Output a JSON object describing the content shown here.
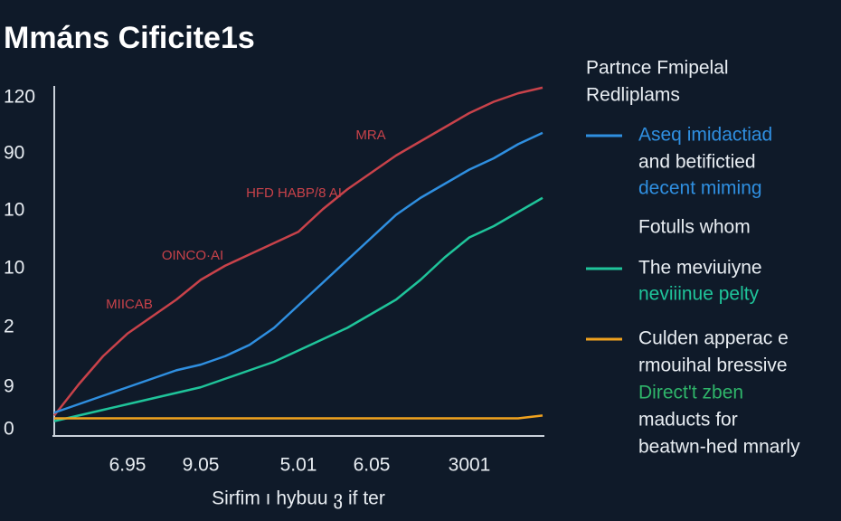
{
  "chart_data": {
    "type": "line",
    "title": "Mmáns Cificite1s",
    "x_label": "Sirfim ı hybuu ვ if ter",
    "categories": [
      null,
      null,
      null,
      "6.95",
      null,
      null,
      "9.05",
      null,
      null,
      null,
      "5.01",
      null,
      null,
      "6.05",
      null,
      null,
      null,
      "3001",
      null,
      null,
      null
    ],
    "y_labels": [
      "120",
      "90",
      "10",
      "10",
      "2",
      "9",
      "0"
    ],
    "ylim": [
      0,
      120
    ],
    "series": [
      {
        "name": "MRA",
        "color": "#c8424a",
        "values": [
          5,
          16,
          26,
          34,
          40,
          46,
          53,
          58,
          62,
          66,
          70,
          78,
          85,
          91,
          97,
          102,
          107,
          112,
          116,
          119,
          121
        ]
      },
      {
        "name": "Aseq imidactiad",
        "color": "#2f8fe0",
        "values": [
          6,
          9,
          12,
          15,
          18,
          21,
          23,
          26,
          30,
          36,
          44,
          52,
          60,
          68,
          76,
          82,
          87,
          92,
          96,
          101,
          105
        ]
      },
      {
        "name": "The meviuiyne",
        "color": "#1fc49a",
        "values": [
          3,
          5,
          7,
          9,
          11,
          13,
          15,
          18,
          21,
          24,
          28,
          32,
          36,
          41,
          46,
          53,
          61,
          68,
          72,
          77,
          82
        ]
      },
      {
        "name": "Culden apperac e",
        "color": "#f0a21e",
        "values": [
          4,
          4,
          4,
          4,
          4,
          4,
          4,
          4,
          4,
          4,
          4,
          4,
          4,
          4,
          4,
          4,
          4,
          4,
          4,
          4,
          5
        ]
      }
    ],
    "annotations": [
      "HFD HABP/8 AI",
      "OINCO·AI",
      "MIICAB"
    ],
    "legend_title": [
      "Partnce Fmipelal",
      "Redliplams"
    ],
    "legend_lines": [
      {
        "text": "and betifictied",
        "color": "#e8edf2"
      },
      {
        "text": "decent miming",
        "color": "#2f8fe0"
      },
      {
        "text": "Fotulls whom",
        "color": "#e8edf2"
      },
      {
        "text": "neviiinue pelty",
        "color": "#1fc49a"
      },
      {
        "text": "rmouihal bressive",
        "color": "#e8edf2"
      },
      {
        "text": "Direct't zben",
        "color": "#2fb56a"
      },
      {
        "text": "maducts for",
        "color": "#e8edf2"
      },
      {
        "text": "beatwn-hed mnarly",
        "color": "#e8edf2"
      }
    ]
  }
}
